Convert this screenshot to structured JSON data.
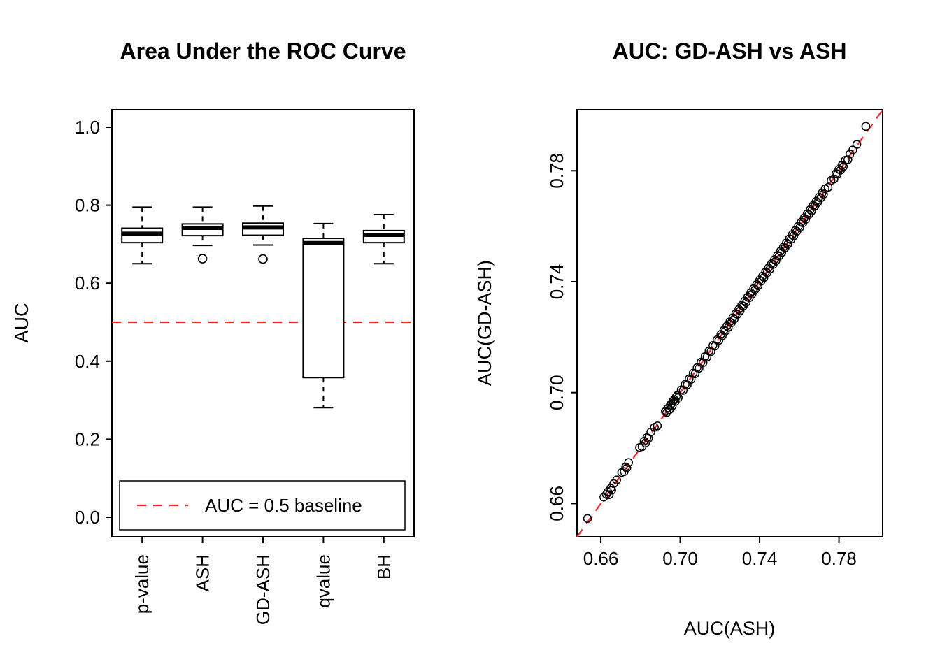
{
  "figure": {
    "background": "#ffffff"
  },
  "chart_data": [
    {
      "type": "boxplot",
      "title": "Area Under the ROC Curve",
      "xlabel": "",
      "ylabel": "AUC",
      "ylim": [
        0.0,
        1.0
      ],
      "yticks": [
        0.0,
        0.2,
        0.4,
        0.6,
        0.8,
        1.0
      ],
      "ytick_labels": [
        "0.0",
        "0.2",
        "0.4",
        "0.6",
        "0.8",
        "1.0"
      ],
      "categories": [
        "p-value",
        "ASH",
        "GD-ASH",
        "qvalue",
        "BH"
      ],
      "grid": false,
      "colors": {
        "box_fill": "#ffffff",
        "stroke": "#000000",
        "baseline": "#ff2020"
      },
      "boxes": [
        {
          "label": "p-value",
          "whisker_low": 0.65,
          "q1": 0.704,
          "median": 0.727,
          "q3": 0.741,
          "whisker_high": 0.795,
          "outliers": []
        },
        {
          "label": "ASH",
          "whisker_low": 0.697,
          "q1": 0.722,
          "median": 0.742,
          "q3": 0.752,
          "whisker_high": 0.795,
          "outliers": [
            0.663
          ]
        },
        {
          "label": "GD-ASH",
          "whisker_low": 0.698,
          "q1": 0.723,
          "median": 0.743,
          "q3": 0.754,
          "whisker_high": 0.798,
          "outliers": [
            0.662
          ]
        },
        {
          "label": "qvalue",
          "whisker_low": 0.281,
          "q1": 0.358,
          "median": 0.703,
          "q3": 0.715,
          "whisker_high": 0.753,
          "outliers": []
        },
        {
          "label": "BH",
          "whisker_low": 0.65,
          "q1": 0.704,
          "median": 0.724,
          "q3": 0.735,
          "whisker_high": 0.776,
          "outliers": []
        }
      ],
      "baseline": {
        "value": 0.5,
        "color": "#ff2020",
        "style": "dashed",
        "legend_label": "AUC = 0.5 baseline"
      },
      "legend_position": "bottom-left-inside"
    },
    {
      "type": "scatter",
      "title": "AUC: GD-ASH vs ASH",
      "xlabel": "AUC(ASH)",
      "ylabel": "AUC(GD-ASH)",
      "xlim": [
        0.648,
        0.802
      ],
      "ylim": [
        0.648,
        0.802
      ],
      "xticks": [
        0.66,
        0.7,
        0.74,
        0.78
      ],
      "xtick_labels": [
        "0.66",
        "0.70",
        "0.74",
        "0.78"
      ],
      "yticks": [
        0.66,
        0.7,
        0.74,
        0.78
      ],
      "ytick_labels": [
        "0.66",
        "0.70",
        "0.74",
        "0.78"
      ],
      "grid": false,
      "marker": {
        "shape": "open-circle",
        "color": "#000000"
      },
      "identity_line": {
        "color": "#ff2020",
        "style": "dashed"
      },
      "points": [
        [
          0.6533,
          0.6546
        ],
        [
          0.6615,
          0.6623
        ],
        [
          0.6628,
          0.6633
        ],
        [
          0.6635,
          0.6642
        ],
        [
          0.6642,
          0.6632
        ],
        [
          0.665,
          0.6655
        ],
        [
          0.6655,
          0.6648
        ],
        [
          0.6665,
          0.6672
        ],
        [
          0.668,
          0.6685
        ],
        [
          0.6705,
          0.6712
        ],
        [
          0.6718,
          0.6715
        ],
        [
          0.6725,
          0.6732
        ],
        [
          0.6731,
          0.6728
        ],
        [
          0.674,
          0.6748
        ],
        [
          0.6795,
          0.6802
        ],
        [
          0.6808,
          0.6805
        ],
        [
          0.6818,
          0.6825
        ],
        [
          0.6825,
          0.6818
        ],
        [
          0.6832,
          0.6838
        ],
        [
          0.684,
          0.6835
        ],
        [
          0.6852,
          0.6858
        ],
        [
          0.687,
          0.6875
        ],
        [
          0.6885,
          0.688
        ],
        [
          0.6925,
          0.6932
        ],
        [
          0.6932,
          0.6928
        ],
        [
          0.694,
          0.6945
        ],
        [
          0.6945,
          0.6938
        ],
        [
          0.695,
          0.6955
        ],
        [
          0.6955,
          0.696
        ],
        [
          0.696,
          0.6952
        ],
        [
          0.6965,
          0.697
        ],
        [
          0.697,
          0.6975
        ],
        [
          0.6975,
          0.6968
        ],
        [
          0.698,
          0.6985
        ],
        [
          0.6985,
          0.699
        ],
        [
          0.699,
          0.6982
        ],
        [
          0.7005,
          0.701
        ],
        [
          0.7015,
          0.7008
        ],
        [
          0.7025,
          0.703
        ],
        [
          0.7035,
          0.7028
        ],
        [
          0.7045,
          0.705
        ],
        [
          0.7055,
          0.7048
        ],
        [
          0.7065,
          0.707
        ],
        [
          0.7075,
          0.7068
        ],
        [
          0.7085,
          0.709
        ],
        [
          0.7095,
          0.7088
        ],
        [
          0.7105,
          0.711
        ],
        [
          0.7115,
          0.7108
        ],
        [
          0.7125,
          0.713
        ],
        [
          0.7135,
          0.7128
        ],
        [
          0.7145,
          0.715
        ],
        [
          0.7155,
          0.7148
        ],
        [
          0.7165,
          0.717
        ],
        [
          0.7175,
          0.7168
        ],
        [
          0.7185,
          0.719
        ],
        [
          0.7195,
          0.7188
        ],
        [
          0.7205,
          0.721
        ],
        [
          0.7212,
          0.7205
        ],
        [
          0.722,
          0.7225
        ],
        [
          0.7228,
          0.7222
        ],
        [
          0.7235,
          0.724
        ],
        [
          0.7242,
          0.7235
        ],
        [
          0.725,
          0.7255
        ],
        [
          0.7258,
          0.7252
        ],
        [
          0.7265,
          0.727
        ],
        [
          0.7272,
          0.7265
        ],
        [
          0.728,
          0.7285
        ],
        [
          0.7288,
          0.7282
        ],
        [
          0.7295,
          0.73
        ],
        [
          0.7302,
          0.7295
        ],
        [
          0.731,
          0.7315
        ],
        [
          0.7318,
          0.7312
        ],
        [
          0.7325,
          0.733
        ],
        [
          0.7332,
          0.7325
        ],
        [
          0.734,
          0.7345
        ],
        [
          0.7348,
          0.7342
        ],
        [
          0.7355,
          0.736
        ],
        [
          0.7362,
          0.7355
        ],
        [
          0.737,
          0.7375
        ],
        [
          0.7378,
          0.7372
        ],
        [
          0.7385,
          0.739
        ],
        [
          0.7392,
          0.7385
        ],
        [
          0.74,
          0.7405
        ],
        [
          0.7408,
          0.7402
        ],
        [
          0.7415,
          0.742
        ],
        [
          0.7422,
          0.7415
        ],
        [
          0.743,
          0.7435
        ],
        [
          0.7438,
          0.7432
        ],
        [
          0.7445,
          0.745
        ],
        [
          0.7452,
          0.7445
        ],
        [
          0.746,
          0.7465
        ],
        [
          0.7468,
          0.7462
        ],
        [
          0.7475,
          0.748
        ],
        [
          0.7482,
          0.7475
        ],
        [
          0.749,
          0.7495
        ],
        [
          0.7498,
          0.7492
        ],
        [
          0.7505,
          0.751
        ],
        [
          0.7512,
          0.7505
        ],
        [
          0.752,
          0.7525
        ],
        [
          0.7528,
          0.7522
        ],
        [
          0.7535,
          0.754
        ],
        [
          0.7542,
          0.7535
        ],
        [
          0.755,
          0.7555
        ],
        [
          0.7558,
          0.7552
        ],
        [
          0.7565,
          0.757
        ],
        [
          0.7572,
          0.7565
        ],
        [
          0.758,
          0.7585
        ],
        [
          0.7588,
          0.7582
        ],
        [
          0.7595,
          0.76
        ],
        [
          0.7602,
          0.7595
        ],
        [
          0.761,
          0.7615
        ],
        [
          0.7618,
          0.7612
        ],
        [
          0.7625,
          0.763
        ],
        [
          0.7632,
          0.7625
        ],
        [
          0.764,
          0.7645
        ],
        [
          0.7648,
          0.7642
        ],
        [
          0.7655,
          0.766
        ],
        [
          0.7662,
          0.7655
        ],
        [
          0.767,
          0.7675
        ],
        [
          0.7678,
          0.7672
        ],
        [
          0.7685,
          0.769
        ],
        [
          0.7692,
          0.7685
        ],
        [
          0.77,
          0.7705
        ],
        [
          0.7708,
          0.7702
        ],
        [
          0.7715,
          0.772
        ],
        [
          0.7722,
          0.7715
        ],
        [
          0.773,
          0.7735
        ],
        [
          0.7745,
          0.774
        ],
        [
          0.776,
          0.7765
        ],
        [
          0.7775,
          0.777
        ],
        [
          0.7785,
          0.779
        ],
        [
          0.7792,
          0.7788
        ],
        [
          0.78,
          0.7805
        ],
        [
          0.7808,
          0.7802
        ],
        [
          0.7815,
          0.782
        ],
        [
          0.7822,
          0.7815
        ],
        [
          0.7832,
          0.7838
        ],
        [
          0.7845,
          0.784
        ],
        [
          0.7855,
          0.786
        ],
        [
          0.787,
          0.7875
        ],
        [
          0.789,
          0.7895
        ],
        [
          0.7935,
          0.796
        ]
      ]
    }
  ]
}
